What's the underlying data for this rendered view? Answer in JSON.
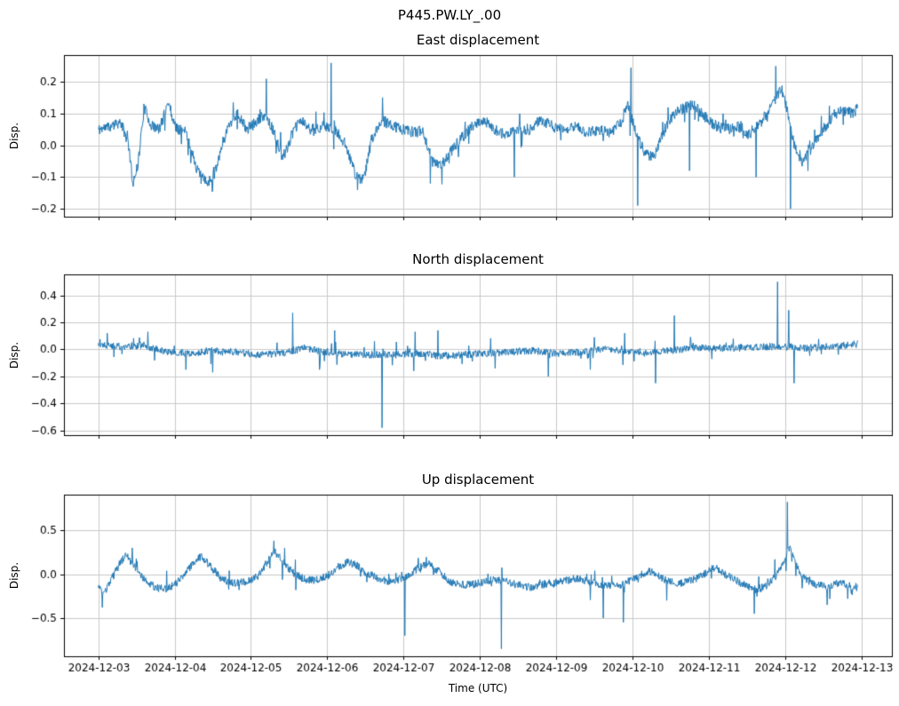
{
  "figure": {
    "suptitle": "P445.PW.LY_.00"
  },
  "chart_data": {
    "type": "line",
    "suptitle": "P445.PW.LY_.00",
    "xlabel": "Time (UTC)",
    "line_color": "#1f77b4",
    "grid_color": "#c9c9c9",
    "spine_color": "#000000",
    "grid": true,
    "legend": false,
    "xlim": [
      -0.45,
      10.4
    ],
    "x_data_range": [
      0,
      9.95
    ],
    "x_unit": "days since 2024-12-03",
    "xticks": [
      {
        "v": 0,
        "label": "2024-12-03"
      },
      {
        "v": 1,
        "label": "2024-12-04"
      },
      {
        "v": 2,
        "label": "2024-12-05"
      },
      {
        "v": 3,
        "label": "2024-12-06"
      },
      {
        "v": 4,
        "label": "2024-12-07"
      },
      {
        "v": 5,
        "label": "2024-12-08"
      },
      {
        "v": 6,
        "label": "2024-12-09"
      },
      {
        "v": 7,
        "label": "2024-12-10"
      },
      {
        "v": 8,
        "label": "2024-12-11"
      },
      {
        "v": 9,
        "label": "2024-12-12"
      },
      {
        "v": 10,
        "label": "2024-12-13"
      }
    ],
    "subplots": [
      {
        "title": "East displacement",
        "ylabel": "Disp.",
        "ylim": [
          -0.225,
          0.285
        ],
        "yticks": [
          {
            "v": -0.2,
            "label": "−0.2"
          },
          {
            "v": -0.1,
            "label": "−0.1"
          },
          {
            "v": 0.0,
            "label": "0.0"
          },
          {
            "v": 0.1,
            "label": "0.1"
          },
          {
            "v": 0.2,
            "label": "0.2"
          }
        ],
        "noise": 0.018,
        "seed": 11,
        "keypoints": [
          [
            0,
            0.05
          ],
          [
            0.15,
            0.06
          ],
          [
            0.3,
            0.07
          ],
          [
            0.4,
            0.0
          ],
          [
            0.45,
            -0.12
          ],
          [
            0.52,
            -0.06
          ],
          [
            0.6,
            0.12
          ],
          [
            0.7,
            0.06
          ],
          [
            0.8,
            0.05
          ],
          [
            0.92,
            0.14
          ],
          [
            1.0,
            0.06
          ],
          [
            1.15,
            0.04
          ],
          [
            1.3,
            -0.08
          ],
          [
            1.42,
            -0.12
          ],
          [
            1.52,
            -0.09
          ],
          [
            1.62,
            0.0
          ],
          [
            1.72,
            0.07
          ],
          [
            1.82,
            0.1
          ],
          [
            1.95,
            0.05
          ],
          [
            2.1,
            0.08
          ],
          [
            2.2,
            0.1
          ],
          [
            2.3,
            0.04
          ],
          [
            2.42,
            -0.04
          ],
          [
            2.55,
            0.04
          ],
          [
            2.65,
            0.08
          ],
          [
            2.78,
            0.05
          ],
          [
            2.95,
            0.06
          ],
          [
            3.1,
            0.05
          ],
          [
            3.25,
            0.0
          ],
          [
            3.38,
            -0.1
          ],
          [
            3.48,
            -0.11
          ],
          [
            3.58,
            0.02
          ],
          [
            3.72,
            0.08
          ],
          [
            3.85,
            0.06
          ],
          [
            4.0,
            0.05
          ],
          [
            4.15,
            0.04
          ],
          [
            4.25,
            0.05
          ],
          [
            4.38,
            -0.05
          ],
          [
            4.5,
            -0.06
          ],
          [
            4.62,
            -0.02
          ],
          [
            4.75,
            0.02
          ],
          [
            4.9,
            0.06
          ],
          [
            5.05,
            0.08
          ],
          [
            5.2,
            0.05
          ],
          [
            5.35,
            0.03
          ],
          [
            5.5,
            0.05
          ],
          [
            5.65,
            0.05
          ],
          [
            5.8,
            0.08
          ],
          [
            5.95,
            0.06
          ],
          [
            6.1,
            0.05
          ],
          [
            6.25,
            0.06
          ],
          [
            6.4,
            0.04
          ],
          [
            6.55,
            0.05
          ],
          [
            6.7,
            0.04
          ],
          [
            6.85,
            0.07
          ],
          [
            6.93,
            0.13
          ],
          [
            7.05,
            0.04
          ],
          [
            7.15,
            -0.02
          ],
          [
            7.28,
            -0.04
          ],
          [
            7.4,
            0.04
          ],
          [
            7.55,
            0.1
          ],
          [
            7.7,
            0.12
          ],
          [
            7.8,
            0.13
          ],
          [
            7.95,
            0.09
          ],
          [
            8.1,
            0.06
          ],
          [
            8.25,
            0.05
          ],
          [
            8.4,
            0.06
          ],
          [
            8.55,
            0.03
          ],
          [
            8.7,
            0.08
          ],
          [
            8.82,
            0.12
          ],
          [
            8.95,
            0.18
          ],
          [
            9.02,
            0.12
          ],
          [
            9.12,
            0.0
          ],
          [
            9.22,
            -0.05
          ],
          [
            9.35,
            -0.01
          ],
          [
            9.5,
            0.05
          ],
          [
            9.65,
            0.1
          ],
          [
            9.78,
            0.11
          ],
          [
            9.9,
            0.1
          ],
          [
            9.95,
            0.12
          ]
        ],
        "spikes": [
          [
            2.2,
            0.21
          ],
          [
            3.05,
            0.26
          ],
          [
            4.35,
            -0.12
          ],
          [
            5.45,
            -0.1
          ],
          [
            6.98,
            0.245
          ],
          [
            7.07,
            -0.19
          ],
          [
            7.75,
            -0.08
          ],
          [
            8.62,
            -0.1
          ],
          [
            8.88,
            0.25
          ],
          [
            9.07,
            -0.2
          ]
        ]
      },
      {
        "title": "North displacement",
        "ylabel": "Disp.",
        "ylim": [
          -0.635,
          0.555
        ],
        "yticks": [
          {
            "v": -0.6,
            "label": "−0.6"
          },
          {
            "v": -0.4,
            "label": "−0.4"
          },
          {
            "v": -0.2,
            "label": "−0.2"
          },
          {
            "v": 0.0,
            "label": "0.0"
          },
          {
            "v": 0.2,
            "label": "0.2"
          },
          {
            "v": 0.4,
            "label": "0.4"
          }
        ],
        "noise": 0.027,
        "seed": 22,
        "keypoints": [
          [
            0,
            0.04
          ],
          [
            0.3,
            0.02
          ],
          [
            0.6,
            0.03
          ],
          [
            0.9,
            -0.02
          ],
          [
            1.2,
            -0.03
          ],
          [
            1.5,
            -0.01
          ],
          [
            1.8,
            -0.02
          ],
          [
            2.1,
            -0.04
          ],
          [
            2.4,
            -0.03
          ],
          [
            2.7,
            0.01
          ],
          [
            3.0,
            -0.02
          ],
          [
            3.3,
            -0.04
          ],
          [
            3.6,
            -0.04
          ],
          [
            3.9,
            -0.04
          ],
          [
            4.2,
            -0.03
          ],
          [
            4.5,
            -0.05
          ],
          [
            4.8,
            -0.04
          ],
          [
            5.1,
            -0.03
          ],
          [
            5.4,
            -0.02
          ],
          [
            5.7,
            -0.01
          ],
          [
            6.0,
            -0.03
          ],
          [
            6.3,
            -0.02
          ],
          [
            6.6,
            0.0
          ],
          [
            6.9,
            -0.01
          ],
          [
            7.2,
            -0.02
          ],
          [
            7.5,
            -0.01
          ],
          [
            7.8,
            0.01
          ],
          [
            8.1,
            0.01
          ],
          [
            8.4,
            0.01
          ],
          [
            8.7,
            0.02
          ],
          [
            9.0,
            0.02
          ],
          [
            9.3,
            0.01
          ],
          [
            9.6,
            0.02
          ],
          [
            9.95,
            0.04
          ]
        ],
        "spikes": [
          [
            0.12,
            0.12
          ],
          [
            0.65,
            0.13
          ],
          [
            1.15,
            -0.15
          ],
          [
            1.5,
            -0.17
          ],
          [
            2.55,
            0.27
          ],
          [
            2.9,
            -0.15
          ],
          [
            3.1,
            0.14
          ],
          [
            3.72,
            -0.58
          ],
          [
            4.15,
            0.13
          ],
          [
            4.45,
            0.14
          ],
          [
            5.2,
            -0.14
          ],
          [
            5.9,
            -0.2
          ],
          [
            6.45,
            -0.15
          ],
          [
            6.9,
            0.12
          ],
          [
            7.3,
            -0.25
          ],
          [
            7.55,
            0.25
          ],
          [
            8.9,
            0.5
          ],
          [
            9.05,
            0.29
          ],
          [
            9.12,
            -0.25
          ]
        ]
      },
      {
        "title": "Up displacement",
        "ylabel": "Disp.",
        "ylim": [
          -0.935,
          0.905
        ],
        "yticks": [
          {
            "v": -0.5,
            "label": "−0.5"
          },
          {
            "v": 0.0,
            "label": "0.0"
          },
          {
            "v": 0.5,
            "label": "0.5"
          }
        ],
        "noise": 0.045,
        "seed": 33,
        "keypoints": [
          [
            0,
            -0.16
          ],
          [
            0.08,
            -0.22
          ],
          [
            0.18,
            -0.05
          ],
          [
            0.3,
            0.15
          ],
          [
            0.38,
            0.22
          ],
          [
            0.5,
            0.05
          ],
          [
            0.62,
            -0.08
          ],
          [
            0.75,
            -0.15
          ],
          [
            0.88,
            -0.17
          ],
          [
            1.0,
            -0.12
          ],
          [
            1.12,
            -0.02
          ],
          [
            1.25,
            0.14
          ],
          [
            1.35,
            0.2
          ],
          [
            1.48,
            0.08
          ],
          [
            1.6,
            -0.04
          ],
          [
            1.72,
            -0.1
          ],
          [
            1.85,
            -0.1
          ],
          [
            1.98,
            -0.07
          ],
          [
            2.1,
            -0.02
          ],
          [
            2.22,
            0.15
          ],
          [
            2.32,
            0.26
          ],
          [
            2.45,
            0.1
          ],
          [
            2.58,
            0.0
          ],
          [
            2.7,
            -0.06
          ],
          [
            2.85,
            -0.07
          ],
          [
            3.0,
            -0.02
          ],
          [
            3.12,
            0.04
          ],
          [
            3.25,
            0.14
          ],
          [
            3.38,
            0.1
          ],
          [
            3.5,
            0.02
          ],
          [
            3.65,
            -0.04
          ],
          [
            3.8,
            -0.08
          ],
          [
            3.95,
            -0.06
          ],
          [
            4.1,
            0.0
          ],
          [
            4.22,
            0.09
          ],
          [
            4.35,
            0.12
          ],
          [
            4.5,
            0.0
          ],
          [
            4.62,
            -0.09
          ],
          [
            4.75,
            -0.12
          ],
          [
            4.9,
            -0.12
          ],
          [
            5.05,
            -0.09
          ],
          [
            5.2,
            -0.06
          ],
          [
            5.35,
            -0.09
          ],
          [
            5.5,
            -0.12
          ],
          [
            5.65,
            -0.15
          ],
          [
            5.8,
            -0.12
          ],
          [
            5.95,
            -0.1
          ],
          [
            6.1,
            -0.08
          ],
          [
            6.25,
            -0.05
          ],
          [
            6.4,
            -0.08
          ],
          [
            6.55,
            -0.11
          ],
          [
            6.7,
            -0.14
          ],
          [
            6.85,
            -0.12
          ],
          [
            7.0,
            -0.06
          ],
          [
            7.12,
            0.0
          ],
          [
            7.22,
            0.04
          ],
          [
            7.35,
            -0.03
          ],
          [
            7.5,
            -0.09
          ],
          [
            7.65,
            -0.1
          ],
          [
            7.8,
            -0.06
          ],
          [
            7.95,
            0.0
          ],
          [
            8.08,
            0.08
          ],
          [
            8.2,
            0.0
          ],
          [
            8.35,
            -0.07
          ],
          [
            8.5,
            -0.14
          ],
          [
            8.62,
            -0.18
          ],
          [
            8.75,
            -0.13
          ],
          [
            8.88,
            -0.02
          ],
          [
            9.0,
            0.18
          ],
          [
            9.06,
            0.3
          ],
          [
            9.15,
            0.1
          ],
          [
            9.25,
            -0.05
          ],
          [
            9.4,
            -0.12
          ],
          [
            9.55,
            -0.14
          ],
          [
            9.7,
            -0.1
          ],
          [
            9.85,
            -0.13
          ],
          [
            9.95,
            -0.15
          ]
        ],
        "spikes": [
          [
            0.05,
            -0.38
          ],
          [
            2.3,
            0.38
          ],
          [
            4.02,
            -0.7
          ],
          [
            5.28,
            -0.85
          ],
          [
            6.62,
            -0.5
          ],
          [
            6.88,
            -0.55
          ],
          [
            7.45,
            -0.3
          ],
          [
            8.6,
            -0.45
          ],
          [
            9.03,
            0.82
          ],
          [
            9.55,
            -0.35
          ]
        ]
      }
    ]
  }
}
